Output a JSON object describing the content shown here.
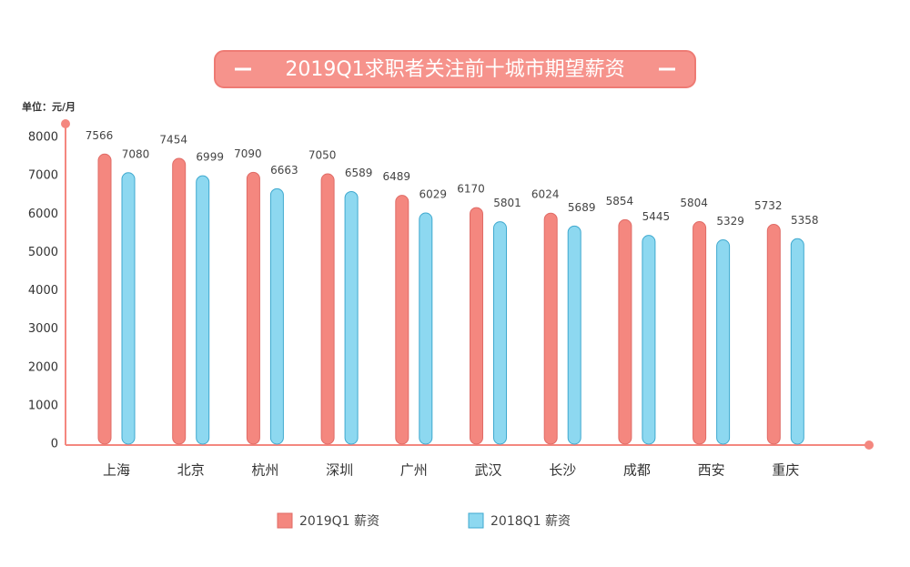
{
  "chart_data": {
    "type": "bar",
    "title": "2019Q1求职者关注前十城市期望薪资",
    "y_label": "单位：元/月",
    "categories": [
      "上海",
      "北京",
      "杭州",
      "深圳",
      "广州",
      "武汉",
      "长沙",
      "成都",
      "西安",
      "重庆"
    ],
    "series": [
      {
        "name": "2019Q1 薪资",
        "color": "#f4877f",
        "values": [
          7566,
          7454,
          7090,
          7050,
          6489,
          6170,
          6024,
          5854,
          5804,
          5732
        ]
      },
      {
        "name": "2018Q1 薪资",
        "color": "#8dd8f0",
        "values": [
          7080,
          6999,
          6663,
          6589,
          6029,
          5801,
          5689,
          5445,
          5329,
          5358
        ]
      }
    ],
    "ylim": [
      0,
      8000
    ],
    "yticks": [
      0,
      1000,
      2000,
      3000,
      4000,
      5000,
      6000,
      7000,
      8000
    ],
    "grid": false
  }
}
